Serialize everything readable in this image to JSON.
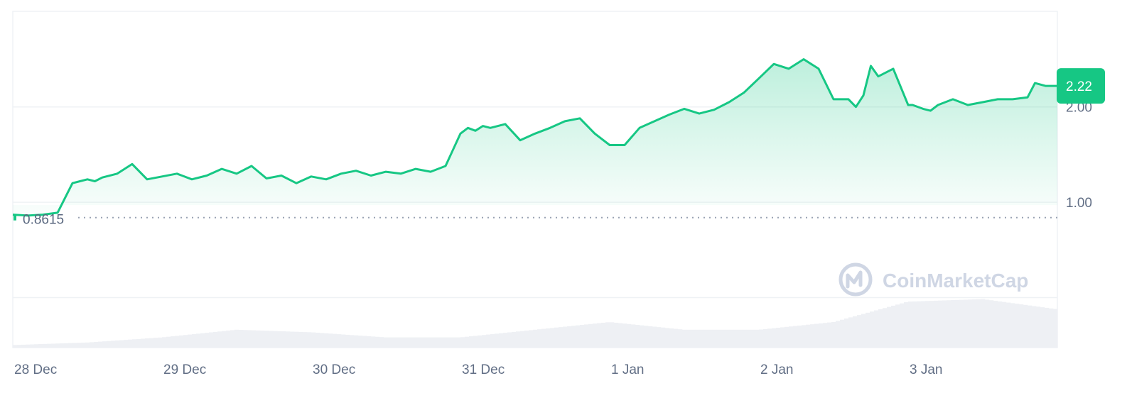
{
  "chart_data": {
    "type": "area",
    "title": "",
    "xlabel": "",
    "ylabel": "",
    "x_ticks": [
      "28 Dec",
      "29 Dec",
      "30 Dec",
      "31 Dec",
      "1 Jan",
      "2 Jan",
      "3 Jan"
    ],
    "y_ticks": [
      "1.00",
      "2.00"
    ],
    "ylim": [
      0.0,
      2.5
    ],
    "grid": true,
    "baseline": {
      "value": 0.8615,
      "label": "0.8615"
    },
    "current": {
      "value": 2.22,
      "label": "2.22"
    },
    "watermark": "CoinMarketCap",
    "colors": {
      "line": "#16c784",
      "baseline_dots": "#9aa3b3",
      "grid": "#eff2f5",
      "volume": "#eef0f4",
      "label_bg": "#16c784",
      "text": "#616e85",
      "watermark": "#cfd6e4"
    },
    "series": [
      {
        "x": [
          0.0,
          0.1,
          0.2,
          0.3,
          0.4,
          0.45,
          0.5,
          0.55,
          0.6,
          0.7,
          0.8,
          0.9,
          1.0,
          1.1,
          1.2,
          1.3,
          1.4,
          1.5,
          1.6,
          1.7,
          1.8,
          1.9,
          2.0,
          2.1,
          2.2,
          2.3,
          2.4,
          2.5,
          2.6,
          2.7,
          2.8,
          2.9,
          3.0,
          3.05,
          3.1,
          3.15,
          3.2,
          3.3,
          3.4,
          3.5,
          3.6,
          3.7,
          3.8,
          3.9,
          4.0,
          4.1,
          4.2,
          4.3,
          4.4,
          4.5,
          4.6,
          4.7,
          4.8,
          4.9,
          5.0,
          5.1,
          5.2,
          5.3,
          5.4,
          5.5,
          5.6,
          5.65,
          5.7,
          5.75,
          5.8,
          5.9,
          6.0,
          6.03,
          6.1,
          6.15,
          6.2,
          6.3,
          6.4,
          6.5,
          6.6,
          6.7,
          6.8,
          6.85,
          6.92,
          7.0
        ],
        "values": [
          0.87,
          0.86,
          0.87,
          0.89,
          1.2,
          1.22,
          1.24,
          1.22,
          1.26,
          1.3,
          1.4,
          1.24,
          1.27,
          1.3,
          1.24,
          1.28,
          1.35,
          1.3,
          1.38,
          1.25,
          1.28,
          1.2,
          1.27,
          1.24,
          1.3,
          1.33,
          1.28,
          1.32,
          1.3,
          1.35,
          1.32,
          1.38,
          1.72,
          1.78,
          1.75,
          1.8,
          1.78,
          1.82,
          1.65,
          1.72,
          1.78,
          1.85,
          1.88,
          1.72,
          1.6,
          1.6,
          1.78,
          1.85,
          1.92,
          1.98,
          1.93,
          1.97,
          2.05,
          2.15,
          2.3,
          2.45,
          2.4,
          2.5,
          2.4,
          2.08,
          2.08,
          2.0,
          2.12,
          2.43,
          2.32,
          2.4,
          2.02,
          2.02,
          1.98,
          1.96,
          2.02,
          2.08,
          2.02,
          2.05,
          2.08,
          2.08,
          2.1,
          2.25,
          2.22,
          2.22
        ]
      }
    ],
    "volume": {
      "x": [
        0.0,
        0.5,
        1.0,
        1.5,
        2.0,
        2.5,
        3.0,
        3.5,
        4.0,
        4.5,
        5.0,
        5.5,
        6.0,
        6.5,
        7.0
      ],
      "values": [
        0.05,
        0.1,
        0.2,
        0.35,
        0.3,
        0.2,
        0.2,
        0.35,
        0.5,
        0.35,
        0.35,
        0.5,
        0.9,
        0.95,
        0.75
      ]
    }
  }
}
